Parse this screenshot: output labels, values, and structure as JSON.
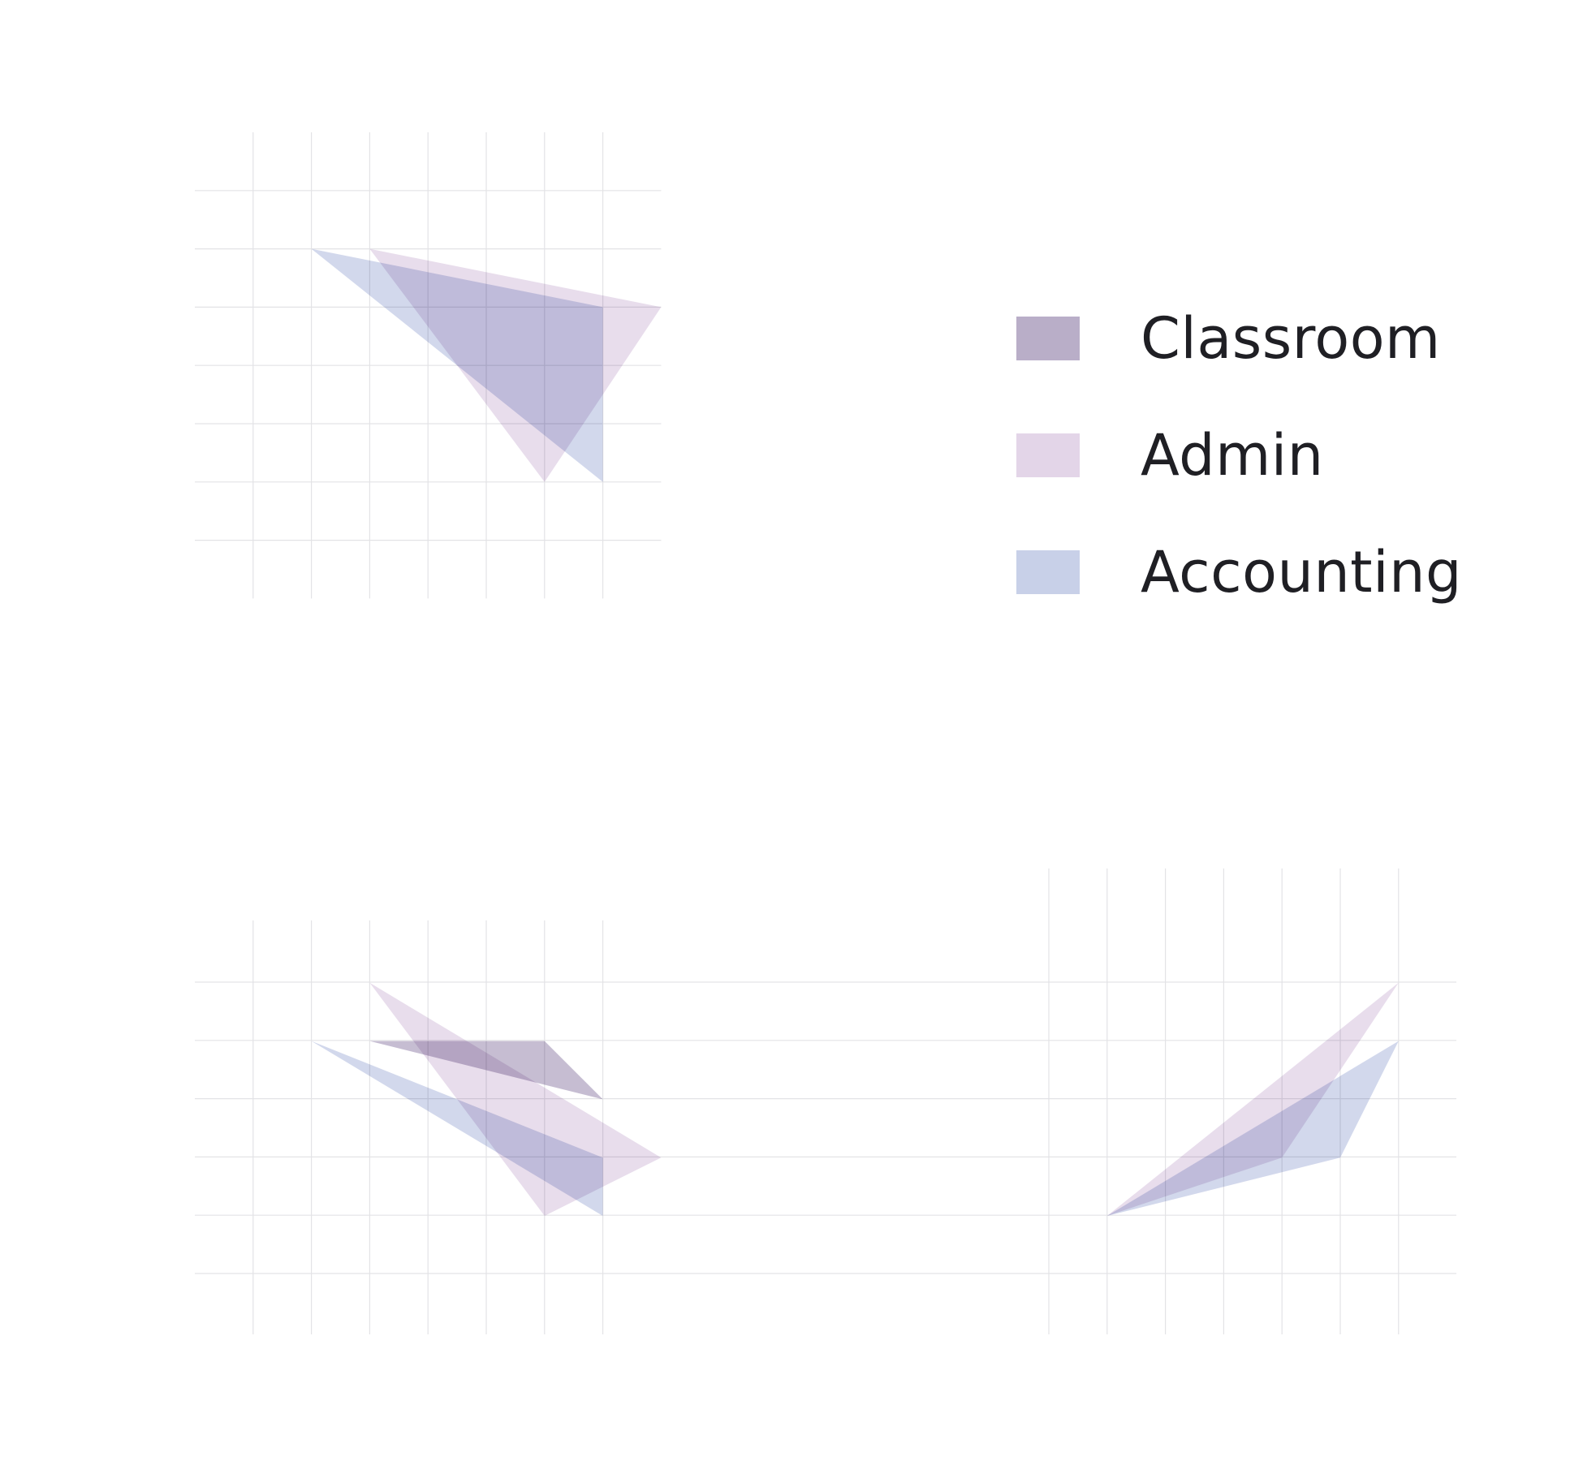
{
  "chart_data": {
    "type": "radar",
    "grid": true,
    "legend_position": "top-right",
    "series": [
      {
        "name": "Classroom",
        "color": "#b9aec8"
      },
      {
        "name": "Admin",
        "color": "#e3d5e8"
      },
      {
        "name": "Accounting",
        "color": "#c8d0e8"
      }
    ],
    "panels": [
      {
        "polygons": [
          {
            "series": "Accounting",
            "points": [
              [
                2,
                2
              ],
              [
                7,
                3
              ],
              [
                7,
                6
              ]
            ]
          },
          {
            "series": "Admin",
            "points": [
              [
                3,
                2
              ],
              [
                8,
                3
              ],
              [
                6,
                6
              ]
            ]
          }
        ]
      },
      {
        "polygons": [
          {
            "series": "Classroom",
            "points": [
              [
                3,
                2
              ],
              [
                6,
                2
              ],
              [
                7,
                3
              ]
            ]
          },
          {
            "series": "Admin",
            "points": [
              [
                3,
                1
              ],
              [
                8,
                4
              ],
              [
                6,
                5
              ]
            ]
          },
          {
            "series": "Accounting",
            "points": [
              [
                2,
                2
              ],
              [
                7,
                4
              ],
              [
                7,
                5
              ]
            ]
          }
        ]
      },
      {
        "polygons": [
          {
            "series": "Admin",
            "points": [
              [
                6,
                1
              ],
              [
                4,
                4
              ],
              [
                1,
                5
              ]
            ]
          },
          {
            "series": "Accounting",
            "points": [
              [
                6,
                2
              ],
              [
                5,
                4
              ],
              [
                1,
                5
              ]
            ]
          }
        ]
      }
    ]
  }
}
